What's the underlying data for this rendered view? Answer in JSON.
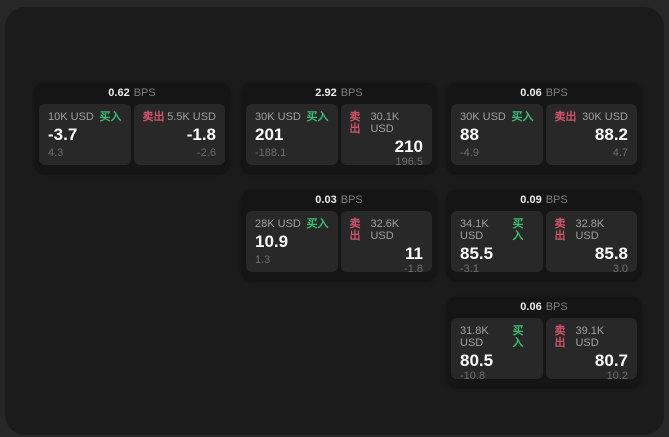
{
  "labels": {
    "bps_unit": "BPS",
    "buy": "买入",
    "sell": "卖出"
  },
  "colors": {
    "buy": "#3dbd72",
    "sell": "#cf5468",
    "panel_bg": "#1b1b1b",
    "card_bg": "#151515",
    "tile_bg": "#282828"
  },
  "cards": [
    {
      "bps": "0.62",
      "buy": {
        "amount": "10K USD",
        "price": "-3.7",
        "delta": "4.3"
      },
      "sell": {
        "amount": "5.5K USD",
        "price": "-1.8",
        "delta": "-2.6"
      }
    },
    {
      "bps": "2.92",
      "buy": {
        "amount": "30K USD",
        "price": "201",
        "delta": "-188.1"
      },
      "sell": {
        "amount": "30.1K USD",
        "price": "210",
        "delta": "196.5"
      }
    },
    {
      "bps": "0.06",
      "buy": {
        "amount": "30K USD",
        "price": "88",
        "delta": "-4.9"
      },
      "sell": {
        "amount": "30K USD",
        "price": "88.2",
        "delta": "4.7"
      }
    },
    {
      "bps": "0.03",
      "buy": {
        "amount": "28K USD",
        "price": "10.9",
        "delta": "1.3"
      },
      "sell": {
        "amount": "32.6K USD",
        "price": "11",
        "delta": "-1.8"
      }
    },
    {
      "bps": "0.09",
      "buy": {
        "amount": "34.1K USD",
        "price": "85.5",
        "delta": "-3.1"
      },
      "sell": {
        "amount": "32.8K USD",
        "price": "85.8",
        "delta": "3.0"
      }
    },
    {
      "bps": "0.06",
      "buy": {
        "amount": "31.8K USD",
        "price": "80.5",
        "delta": "-10.8"
      },
      "sell": {
        "amount": "39.1K USD",
        "price": "80.7",
        "delta": "10.2"
      }
    }
  ]
}
